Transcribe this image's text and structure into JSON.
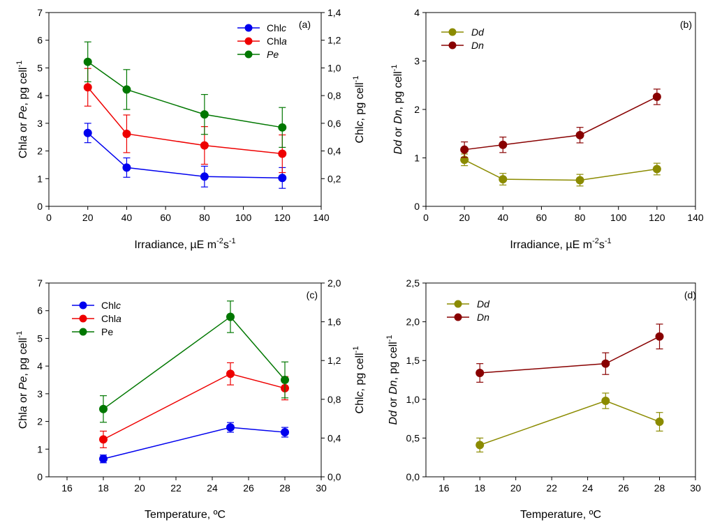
{
  "chart_data": [
    {
      "type": "scatter",
      "panel_label": "(a)",
      "xlabel": "Irradiance, µE m-2s-1",
      "xlabel_parts": {
        "main": "Irradiance, ",
        "mu": "µ",
        "e": "E m",
        "sup1": "-2",
        "s": "s",
        "sup2": "-1"
      },
      "ylabel_left_parts": {
        "p1": "Chl",
        "p2": "a",
        "p3": " or ",
        "p4": "Pe",
        "p5": ", pg cell",
        "p6": "-1"
      },
      "ylabel_right_parts": {
        "p1": "Chl",
        "p2": "c",
        "p3": ", pg cell",
        "p4": "-1"
      },
      "xlim": [
        0,
        140
      ],
      "xticks": [
        "0",
        "20",
        "40",
        "60",
        "80",
        "100",
        "120",
        "140"
      ],
      "xtick_values": [
        0,
        20,
        40,
        60,
        80,
        100,
        120,
        140
      ],
      "ylim_left": [
        0,
        7
      ],
      "yticks_left": [
        "0",
        "1",
        "2",
        "3",
        "4",
        "5",
        "6",
        "7"
      ],
      "ytick_values_left": [
        0,
        1,
        2,
        3,
        4,
        5,
        6,
        7
      ],
      "ylim_right": [
        0,
        1.4
      ],
      "yticks_right": [
        "0,2",
        "0,4",
        "0,6",
        "0,8",
        "1,0",
        "1,2",
        "1,4"
      ],
      "ytick_values_right": [
        0.2,
        0.4,
        0.6,
        0.8,
        1.0,
        1.2,
        1.4
      ],
      "legend_position": "top-right",
      "series": [
        {
          "name": "Chlc",
          "legend": {
            "base": "Chl",
            "ital": "c"
          },
          "color": "#0000ee",
          "axis": "right",
          "x": [
            20,
            40,
            80,
            120
          ],
          "y": [
            0.53,
            0.28,
            0.215,
            0.205
          ],
          "err": [
            0.07,
            0.07,
            0.075,
            0.075
          ]
        },
        {
          "name": "Chla",
          "legend": {
            "base": "Chl",
            "ital": "a"
          },
          "color": "#ee0000",
          "axis": "left",
          "x": [
            20,
            40,
            80,
            120
          ],
          "y": [
            4.3,
            2.62,
            2.2,
            1.9
          ],
          "err": [
            0.68,
            0.68,
            0.68,
            0.68
          ]
        },
        {
          "name": "Pe",
          "legend": {
            "base": "",
            "ital": "Pe"
          },
          "color": "#007700",
          "axis": "left",
          "x": [
            20,
            40,
            80,
            120
          ],
          "y": [
            5.22,
            4.22,
            3.32,
            2.85
          ],
          "err": [
            0.72,
            0.72,
            0.72,
            0.72
          ]
        }
      ]
    },
    {
      "type": "scatter",
      "panel_label": "(b)",
      "xlabel": "Irradiance, µE m-2s-1",
      "xlabel_parts": {
        "main": "Irradiance, ",
        "mu": "µ",
        "e": "E m",
        "sup1": "-2",
        "s": "s",
        "sup2": "-1"
      },
      "ylabel_left_parts": {
        "p1": "Dd",
        "p2": " or ",
        "p3": "Dn",
        "p4": ", pg cell",
        "p5": "-1"
      },
      "xlim": [
        0,
        140
      ],
      "xticks": [
        "0",
        "20",
        "40",
        "60",
        "80",
        "100",
        "120",
        "140"
      ],
      "xtick_values": [
        0,
        20,
        40,
        60,
        80,
        100,
        120,
        140
      ],
      "ylim_left": [
        0,
        4
      ],
      "yticks_left": [
        "0",
        "1",
        "2",
        "3",
        "4"
      ],
      "ytick_values_left": [
        0,
        1,
        2,
        3,
        4
      ],
      "legend_position": "top-left",
      "series": [
        {
          "name": "Dd",
          "legend": {
            "base": "",
            "ital": "Dd"
          },
          "color": "#8b8b00",
          "axis": "left",
          "x": [
            20,
            40,
            80,
            120
          ],
          "y": [
            0.96,
            0.56,
            0.54,
            0.77
          ],
          "err": [
            0.12,
            0.12,
            0.12,
            0.12
          ]
        },
        {
          "name": "Dn",
          "legend": {
            "base": "",
            "ital": "Dn"
          },
          "color": "#880000",
          "axis": "left",
          "x": [
            20,
            40,
            80,
            120
          ],
          "y": [
            1.17,
            1.27,
            1.47,
            2.26
          ],
          "err": [
            0.16,
            0.16,
            0.16,
            0.16
          ]
        }
      ]
    },
    {
      "type": "scatter",
      "panel_label": "(c)",
      "xlabel": "Temperature, ºC",
      "xlabel_parts": {
        "main": "Temperature, ºC"
      },
      "ylabel_left_parts": {
        "p1": "Chl",
        "p2": "a",
        "p3": " or ",
        "p4": "Pe",
        "p5": ", pg cell",
        "p6": "-1"
      },
      "ylabel_right_parts": {
        "p1": "Chl",
        "p2": "c",
        "p3": ", pg cell",
        "p4": "-1"
      },
      "xlim": [
        15,
        30
      ],
      "xticks": [
        "16",
        "18",
        "20",
        "22",
        "24",
        "26",
        "28",
        "30"
      ],
      "xtick_values": [
        16,
        18,
        20,
        22,
        24,
        26,
        28,
        30
      ],
      "ylim_left": [
        0,
        7
      ],
      "yticks_left": [
        "0",
        "1",
        "2",
        "3",
        "4",
        "5",
        "6",
        "7"
      ],
      "ytick_values_left": [
        0,
        1,
        2,
        3,
        4,
        5,
        6,
        7
      ],
      "ylim_right": [
        0,
        2.0
      ],
      "yticks_right": [
        "0,0",
        "0,4",
        "0,8",
        "1,2",
        "1,6",
        "2,0"
      ],
      "ytick_values_right": [
        0,
        0.4,
        0.8,
        1.2,
        1.6,
        2.0
      ],
      "legend_position": "top-left",
      "series": [
        {
          "name": "Chlc",
          "legend": {
            "base": "Chl",
            "ital": "c"
          },
          "color": "#0000ee",
          "axis": "right",
          "x": [
            18,
            25,
            28
          ],
          "y": [
            0.185,
            0.51,
            0.46
          ],
          "err": [
            0.04,
            0.05,
            0.05
          ]
        },
        {
          "name": "Chla",
          "legend": {
            "base": "Chl",
            "ital": "a"
          },
          "color": "#ee0000",
          "axis": "left",
          "x": [
            18,
            25,
            28
          ],
          "y": [
            1.35,
            3.72,
            3.2
          ],
          "err": [
            0.3,
            0.4,
            0.42
          ]
        },
        {
          "name": "Pe",
          "legend": {
            "base": "Pe",
            "ital": ""
          },
          "color": "#007700",
          "axis": "left",
          "x": [
            18,
            25,
            28
          ],
          "y": [
            2.45,
            5.78,
            3.5
          ],
          "err": [
            0.48,
            0.57,
            0.65
          ]
        }
      ]
    },
    {
      "type": "scatter",
      "panel_label": "(d)",
      "xlabel": "Temperature, ºC",
      "xlabel_parts": {
        "main": "Temperature, ºC"
      },
      "ylabel_left_parts": {
        "p1": "Dd",
        "p2": " or ",
        "p3": "Dn",
        "p4": ", pg cell",
        "p5": "-1"
      },
      "xlim": [
        15,
        30
      ],
      "xticks": [
        "16",
        "18",
        "20",
        "22",
        "24",
        "26",
        "28",
        "30"
      ],
      "xtick_values": [
        16,
        18,
        20,
        22,
        24,
        26,
        28,
        30
      ],
      "ylim_left": [
        0,
        2.5
      ],
      "yticks_left": [
        "0,0",
        "0,5",
        "1,0",
        "1,5",
        "2,0",
        "2,5"
      ],
      "ytick_values_left": [
        0,
        0.5,
        1.0,
        1.5,
        2.0,
        2.5
      ],
      "legend_position": "top-left",
      "series": [
        {
          "name": "Dd",
          "legend": {
            "base": "",
            "ital": "Dd"
          },
          "color": "#8b8b00",
          "axis": "left",
          "x": [
            18,
            25,
            28
          ],
          "y": [
            0.41,
            0.98,
            0.71
          ],
          "err": [
            0.09,
            0.1,
            0.12
          ]
        },
        {
          "name": "Dn",
          "legend": {
            "base": "",
            "ital": "Dn"
          },
          "color": "#880000",
          "axis": "left",
          "x": [
            18,
            25,
            28
          ],
          "y": [
            1.34,
            1.46,
            1.81
          ],
          "err": [
            0.12,
            0.14,
            0.16
          ]
        }
      ]
    }
  ]
}
